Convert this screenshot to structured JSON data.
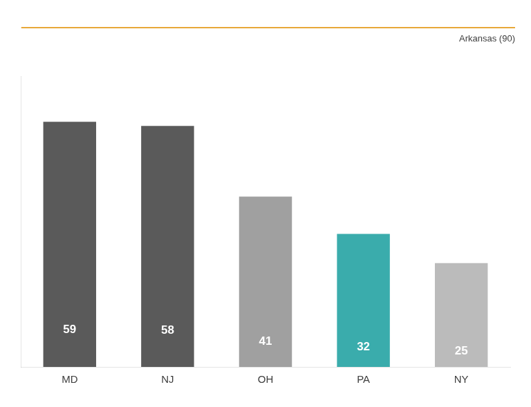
{
  "chart_data": {
    "type": "bar",
    "categories": [
      "MD",
      "NJ",
      "OH",
      "PA",
      "NY"
    ],
    "values": [
      59,
      58,
      41,
      32,
      25
    ],
    "colors": [
      "#5A5A5A",
      "#5A5A5A",
      "#A0A0A0",
      "#3AACAC",
      "#BBBBBB"
    ],
    "ylim": [
      0,
      70
    ],
    "grid": false,
    "data_labels": true,
    "tick_labels": "x",
    "annotations": [
      {
        "text": "Arkansas (90)",
        "color": "#E8A838"
      }
    ]
  }
}
